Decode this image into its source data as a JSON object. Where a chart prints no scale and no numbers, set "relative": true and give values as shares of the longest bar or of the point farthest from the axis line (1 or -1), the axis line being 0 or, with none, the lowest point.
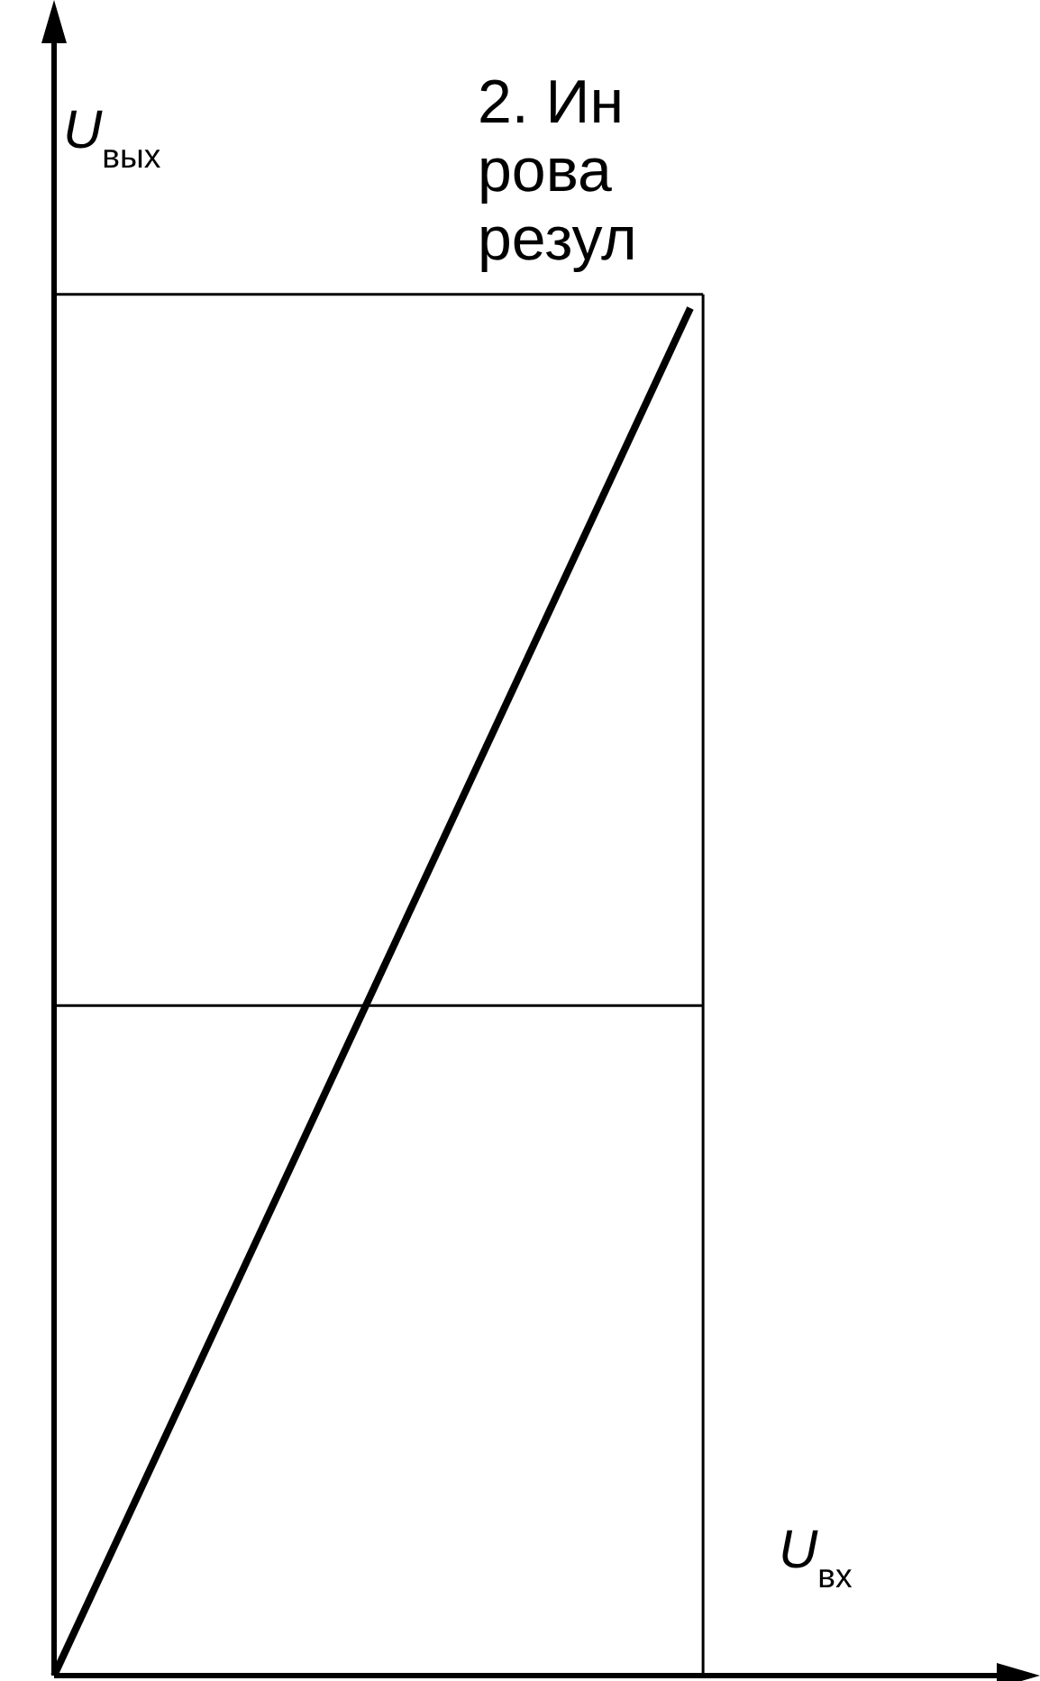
{
  "chart_data": {
    "type": "line",
    "relative": true,
    "xlabel": "U$_{вх}$",
    "ylabel": "U$_{вых}$",
    "categories": [
      null,
      null,
      null
    ],
    "series": [
      {
        "color": "#000000",
        "values": [
          0,
          0.5,
          1
        ]
      }
    ],
    "ref_lines": [
      {
        "axis": "y",
        "value": 1.01,
        "color": "#000000"
      },
      {
        "axis": "y",
        "value": 0.49,
        "color": "#000000"
      }
    ],
    "annotations": [
      "2. Ин",
      "рова",
      "резул"
    ],
    "marker": "none",
    "line_style": "solid"
  }
}
